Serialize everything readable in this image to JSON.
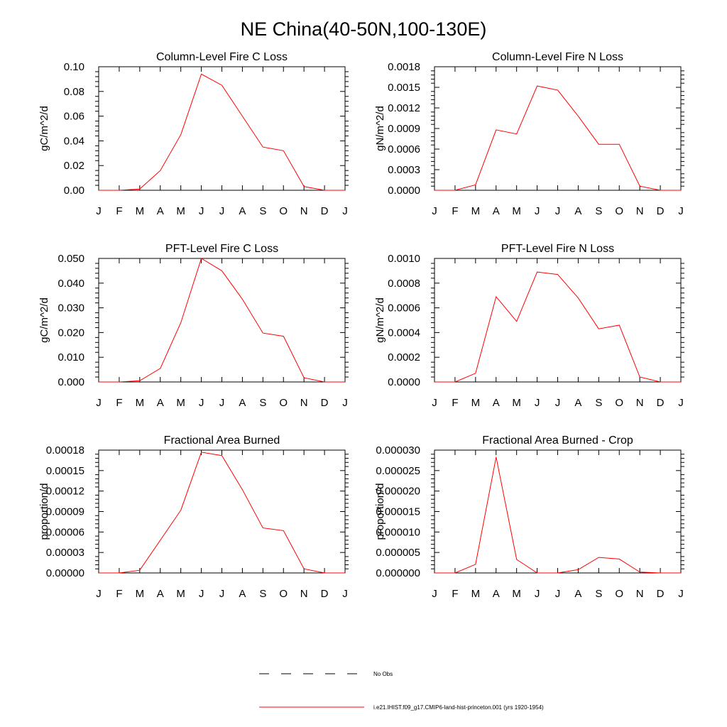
{
  "figure": {
    "title": "NE China(40-50N,100-130E)"
  },
  "legend": {
    "items": [
      {
        "label": "No Obs",
        "style": "dashed",
        "color": "#000000"
      },
      {
        "label": "i.e21.IHIST.f09_g17.CMIP6-land-hist-princeton.001 (yrs 1920-1954)",
        "style": "solid",
        "color": "#ff0000"
      }
    ]
  },
  "chart_data": [
    {
      "type": "line",
      "title": "Column-Level Fire C Loss",
      "ylabel": "gC/m^2/d",
      "xlabel": "",
      "x": [
        "J",
        "F",
        "M",
        "A",
        "M",
        "J",
        "J",
        "A",
        "S",
        "O",
        "N",
        "D",
        "J"
      ],
      "ylim": [
        0,
        0.1
      ],
      "yticks": [
        "0.00",
        "0.02",
        "0.04",
        "0.06",
        "0.08",
        "0.10"
      ],
      "ytick_values": [
        0,
        0.02,
        0.04,
        0.06,
        0.08,
        0.1
      ],
      "series": [
        {
          "color": "#ff0000",
          "values": [
            0.0,
            0.0,
            0.001,
            0.016,
            0.045,
            0.094,
            0.085,
            0.06,
            0.035,
            0.032,
            0.003,
            0.0,
            0.0
          ]
        }
      ]
    },
    {
      "type": "line",
      "title": "Column-Level Fire N Loss",
      "ylabel": "gN/m^2/d",
      "xlabel": "",
      "x": [
        "J",
        "F",
        "M",
        "A",
        "M",
        "J",
        "J",
        "A",
        "S",
        "O",
        "N",
        "D",
        "J"
      ],
      "ylim": [
        0,
        0.0018
      ],
      "yticks": [
        "0.0000",
        "0.0003",
        "0.0006",
        "0.0009",
        "0.0012",
        "0.0015",
        "0.0018"
      ],
      "ytick_values": [
        0,
        0.0003,
        0.0006,
        0.0009,
        0.0012,
        0.0015,
        0.0018
      ],
      "series": [
        {
          "color": "#ff0000",
          "values": [
            0.0,
            0.0,
            8e-05,
            0.00088,
            0.00082,
            0.00152,
            0.00146,
            0.00108,
            0.00067,
            0.00067,
            6e-05,
            0.0,
            0.0
          ]
        }
      ]
    },
    {
      "type": "line",
      "title": "PFT-Level Fire C Loss",
      "ylabel": "gC/m^2/d",
      "xlabel": "",
      "x": [
        "J",
        "F",
        "M",
        "A",
        "M",
        "J",
        "J",
        "A",
        "S",
        "O",
        "N",
        "D",
        "J"
      ],
      "ylim": [
        0,
        0.05
      ],
      "yticks": [
        "0.000",
        "0.010",
        "0.020",
        "0.030",
        "0.040",
        "0.050"
      ],
      "ytick_values": [
        0,
        0.01,
        0.02,
        0.03,
        0.04,
        0.05
      ],
      "series": [
        {
          "color": "#ff0000",
          "values": [
            0.0,
            0.0,
            0.0005,
            0.0055,
            0.024,
            0.05,
            0.045,
            0.0335,
            0.0198,
            0.0185,
            0.0017,
            0.0,
            0.0
          ]
        }
      ]
    },
    {
      "type": "line",
      "title": "PFT-Level Fire N Loss",
      "ylabel": "gN/m^2/d",
      "xlabel": "",
      "x": [
        "J",
        "F",
        "M",
        "A",
        "M",
        "J",
        "J",
        "A",
        "S",
        "O",
        "N",
        "D",
        "J"
      ],
      "ylim": [
        0,
        0.001
      ],
      "yticks": [
        "0.0000",
        "0.0002",
        "0.0004",
        "0.0006",
        "0.0008",
        "0.0010"
      ],
      "ytick_values": [
        0,
        0.0002,
        0.0004,
        0.0006,
        0.0008,
        0.001
      ],
      "series": [
        {
          "color": "#ff0000",
          "values": [
            0.0,
            0.0,
            7e-05,
            0.00069,
            0.00049,
            0.00089,
            0.00087,
            0.00068,
            0.00043,
            0.00046,
            4e-05,
            0.0,
            0.0
          ]
        }
      ]
    },
    {
      "type": "line",
      "title": "Fractional Area Burned",
      "ylabel": "proportion/d",
      "xlabel": "",
      "x": [
        "J",
        "F",
        "M",
        "A",
        "M",
        "J",
        "J",
        "A",
        "S",
        "O",
        "N",
        "D",
        "J"
      ],
      "ylim": [
        0,
        0.00018
      ],
      "yticks": [
        "0.00000",
        "0.00003",
        "0.00006",
        "0.00009",
        "0.00012",
        "0.00015",
        "0.00018"
      ],
      "ytick_values": [
        0,
        3e-05,
        6e-05,
        9e-05,
        0.00012,
        0.00015,
        0.00018
      ],
      "series": [
        {
          "color": "#ff0000",
          "values": [
            0.0,
            0.0,
            4e-06,
            4.8e-05,
            9.2e-05,
            0.000177,
            0.000172,
            0.000122,
            6.6e-05,
            6.2e-05,
            6e-06,
            0.0,
            0.0
          ]
        }
      ]
    },
    {
      "type": "line",
      "title": "Fractional Area Burned - Crop",
      "ylabel": "proportion/d",
      "xlabel": "",
      "x": [
        "J",
        "F",
        "M",
        "A",
        "M",
        "J",
        "J",
        "A",
        "S",
        "O",
        "N",
        "D",
        "J"
      ],
      "ylim": [
        0,
        3e-05
      ],
      "yticks": [
        "0.000000",
        "0.000005",
        "0.000010",
        "0.000015",
        "0.000020",
        "0.000025",
        "0.000030"
      ],
      "ytick_values": [
        0,
        5e-06,
        1e-05,
        1.5e-05,
        2e-05,
        2.5e-05,
        3e-05
      ],
      "series": [
        {
          "color": "#ff0000",
          "values": [
            0.0,
            0.0,
            2.1e-06,
            2.83e-05,
            3.3e-06,
            0.0,
            0.0,
            8e-07,
            3.8e-06,
            3.4e-06,
            2e-07,
            0.0,
            0.0
          ]
        }
      ]
    }
  ]
}
